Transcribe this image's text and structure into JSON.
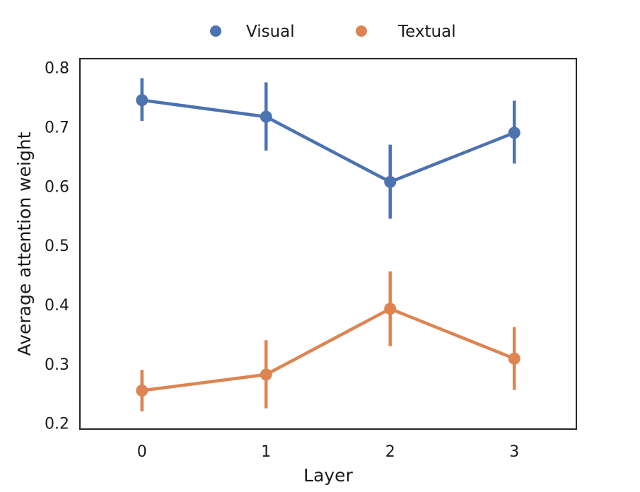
{
  "chart_data": {
    "type": "line",
    "xlabel": "Layer",
    "ylabel": "Average attention weight",
    "x": [
      0,
      1,
      2,
      3
    ],
    "xlim": [
      -0.5,
      3.5
    ],
    "ylim": [
      0.19,
      0.815
    ],
    "yticks": [
      0.2,
      0.3,
      0.4,
      0.5,
      0.6,
      0.7,
      0.8
    ],
    "grid": false,
    "legend_position": "top-center",
    "series": [
      {
        "name": "Visual",
        "color": "#4c72b0",
        "values": [
          0.745,
          0.717,
          0.607,
          0.69
        ],
        "err_low": [
          0.71,
          0.66,
          0.545,
          0.638
        ],
        "err_high": [
          0.782,
          0.775,
          0.67,
          0.744
        ]
      },
      {
        "name": "Textual",
        "color": "#dd8452",
        "values": [
          0.255,
          0.282,
          0.393,
          0.309
        ],
        "err_low": [
          0.22,
          0.225,
          0.33,
          0.256
        ],
        "err_high": [
          0.29,
          0.34,
          0.456,
          0.362
        ]
      }
    ]
  }
}
